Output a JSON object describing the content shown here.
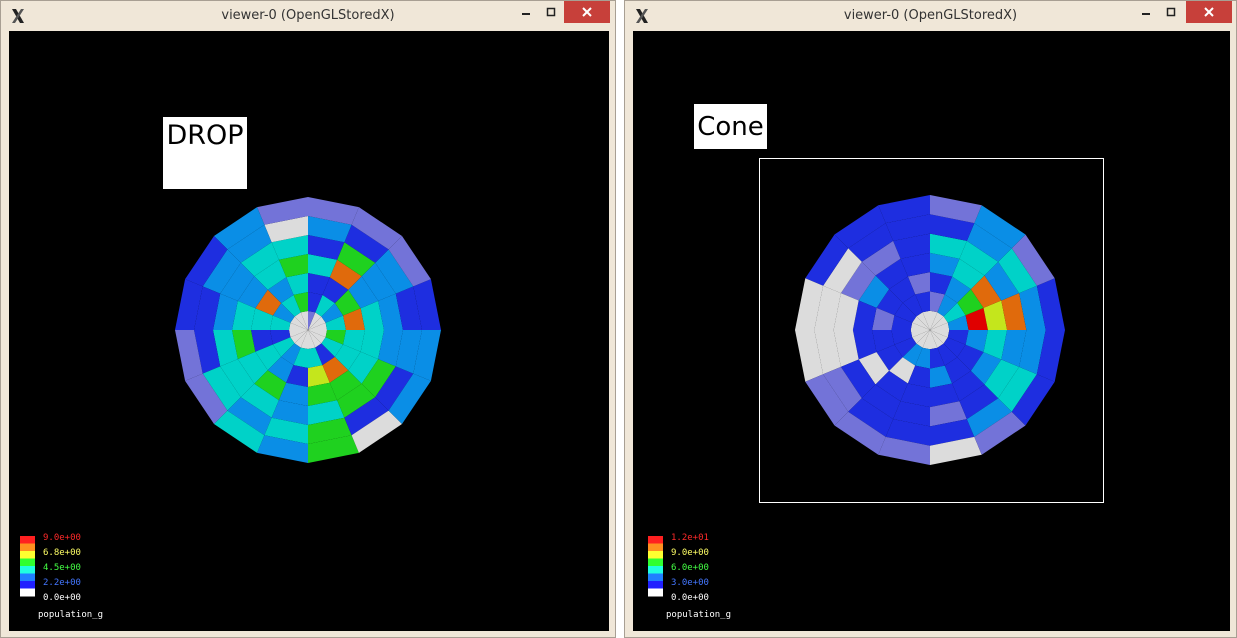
{
  "windows": [
    {
      "id": "left",
      "title": "viewer-0 (OpenGLStoredX)",
      "label": "DROP",
      "framed": false,
      "scale": {
        "ticks": [
          "9.0e+00",
          "6.8e+00",
          "4.5e+00",
          "2.2e+00",
          "0.0e+00"
        ],
        "tick_colors": [
          "#ff2a2a",
          "#ffff66",
          "#44ff44",
          "#4477ff",
          "#ffffff"
        ],
        "name": "population_g"
      },
      "disk": {
        "rings": 7,
        "sectors": 16,
        "ring_colors": [
          [
            "white",
            "white",
            "white",
            "lav",
            "white",
            "white",
            "white",
            "white",
            "white",
            "white",
            "white",
            "white",
            "white",
            "white",
            "white",
            "white"
          ],
          [
            "teal",
            "cyan",
            "teal",
            "blue",
            "green",
            "teal",
            "cyan",
            "teal",
            "blue",
            "teal",
            "cyan",
            "teal",
            "teal",
            "blue",
            "teal",
            "green"
          ],
          [
            "orange",
            "green",
            "blue",
            "blue",
            "teal",
            "cyan",
            "orange",
            "teal",
            "blue",
            "teal",
            "cyan",
            "blue",
            "yellow",
            "orange",
            "teal",
            "teal"
          ],
          [
            "teal",
            "cyan",
            "orange",
            "teal",
            "green",
            "teal",
            "cyan",
            "teal",
            "green",
            "teal",
            "green",
            "cyan",
            "green",
            "green",
            "teal",
            "teal"
          ],
          [
            "cyan",
            "cyan",
            "green",
            "blue",
            "teal",
            "teal",
            "cyan",
            "cyan",
            "teal",
            "teal",
            "teal",
            "cyan",
            "teal",
            "green",
            "green",
            "cyan"
          ],
          [
            "blue",
            "cyan",
            "blue",
            "cyan",
            "white",
            "cyan",
            "cyan",
            "blue",
            "blue",
            "teal",
            "cyan",
            "teal",
            "green",
            "blue",
            "blue",
            "cyan"
          ],
          [
            "blue",
            "lav",
            "lav",
            "lav",
            "lav",
            "cyan",
            "blue",
            "blue",
            "lav",
            "lav",
            "teal",
            "cyan",
            "green",
            "white",
            "cyan",
            "cyan"
          ]
        ]
      }
    },
    {
      "id": "right",
      "title": "viewer-0 (OpenGLStoredX)",
      "label": "Cone",
      "framed": true,
      "scale": {
        "ticks": [
          "1.2e+01",
          "9.0e+00",
          "6.0e+00",
          "3.0e+00",
          "0.0e+00"
        ],
        "tick_colors": [
          "#ff2a2a",
          "#ffff66",
          "#44ff44",
          "#4477ff",
          "#ffffff"
        ],
        "name": "population_g"
      },
      "disk": {
        "rings": 7,
        "sectors": 16,
        "ring_colors": [
          [
            "white",
            "white",
            "white",
            "white",
            "white",
            "white",
            "white",
            "white",
            "white",
            "white",
            "white",
            "white",
            "white",
            "white",
            "white",
            "white"
          ],
          [
            "cyan",
            "teal",
            "cyan",
            "lav",
            "blue",
            "blue",
            "blue",
            "blue",
            "blue",
            "blue",
            "cyan",
            "cyan",
            "blue",
            "blue",
            "blue",
            "blue"
          ],
          [
            "red",
            "green",
            "cyan",
            "blue",
            "lav",
            "blue",
            "blue",
            "lav",
            "blue",
            "blue",
            "white",
            "blue",
            "cyan",
            "blue",
            "blue",
            "cyan"
          ],
          [
            "yellow",
            "orange",
            "teal",
            "cyan",
            "blue",
            "blue",
            "cyan",
            "blue",
            "blue",
            "white",
            "blue",
            "blue",
            "blue",
            "blue",
            "cyan",
            "teal"
          ],
          [
            "orange",
            "cyan",
            "teal",
            "teal",
            "blue",
            "lav",
            "lav",
            "white",
            "white",
            "blue",
            "blue",
            "blue",
            "lav",
            "blue",
            "teal",
            "cyan"
          ],
          [
            "cyan",
            "teal",
            "cyan",
            "blue",
            "blue",
            "blue",
            "white",
            "white",
            "white",
            "lav",
            "blue",
            "blue",
            "blue",
            "cyan",
            "teal",
            "cyan"
          ],
          [
            "blue",
            "lav",
            "cyan",
            "lav",
            "blue",
            "blue",
            "blue",
            "white",
            "white",
            "lav",
            "lav",
            "lav",
            "white",
            "lav",
            "blue",
            "blue"
          ]
        ]
      }
    }
  ],
  "palette": {
    "white": "#dcdcdc",
    "lav": "#7373d8",
    "blue": "#1e2ee0",
    "cyan": "#0a8ee6",
    "teal": "#00d2c8",
    "green": "#1fd11f",
    "yellow": "#c4e61c",
    "orange": "#e06a0c",
    "red": "#e00000"
  }
}
